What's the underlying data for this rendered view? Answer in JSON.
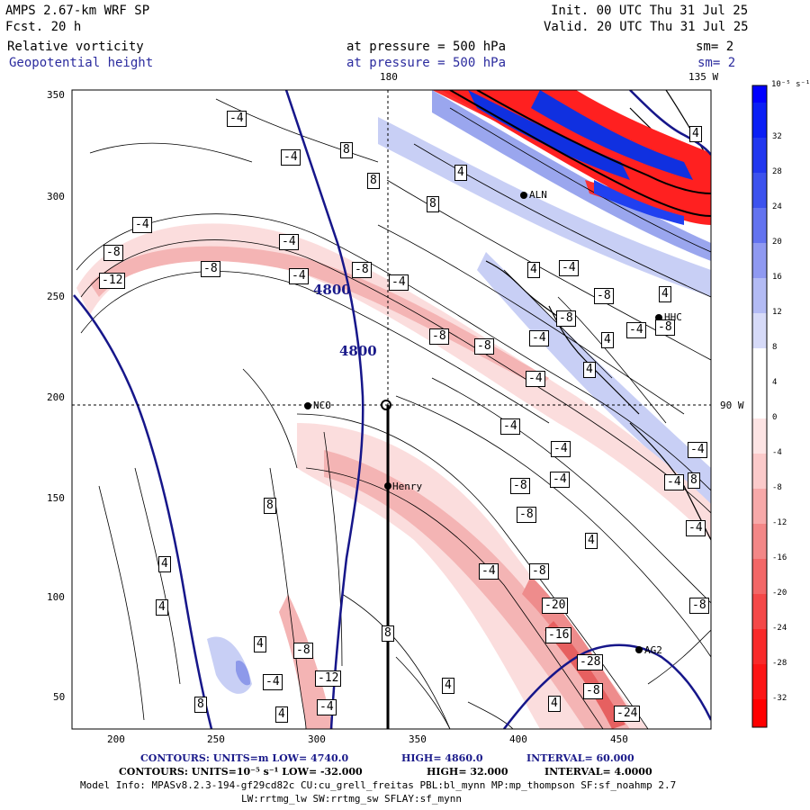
{
  "header": {
    "model": "AMPS 2.67-km WRF SP",
    "fcst": "Fcst.   20 h",
    "init": "Init. 00 UTC Thu 31 Jul 25",
    "valid": "Valid. 20 UTC Thu 31 Jul 25",
    "field1": "Relative vorticity",
    "field1_level": "at pressure =  500 hPa",
    "field1_sm": "sm= 2",
    "field2": "Geopotential height",
    "field2_level": "at pressure =  500 hPa",
    "field2_sm": "sm= 2"
  },
  "grid_labels": {
    "lon_top": "180",
    "lon_right_top": "135 W",
    "lat_right": "90 W"
  },
  "axes": {
    "x_ticks": [
      "200",
      "250",
      "300",
      "350",
      "400",
      "450"
    ],
    "y_ticks": [
      "350",
      "300",
      "250",
      "200",
      "150",
      "100",
      "50"
    ]
  },
  "colorbar": {
    "unit": "10⁻⁵ s⁻¹",
    "ticks": [
      "32",
      "28",
      "24",
      "20",
      "16",
      "12",
      "8",
      "4",
      "0",
      "-4",
      "-8",
      "-12",
      "-16",
      "-20",
      "-24",
      "-28",
      "-32"
    ]
  },
  "stations": [
    {
      "name": "NCO"
    },
    {
      "name": "Henry"
    },
    {
      "name": "AG2"
    },
    {
      "name": "HHC"
    },
    {
      "name": "ALN"
    }
  ],
  "contour_labels": {
    "height": [
      "4800",
      "4800"
    ],
    "vorticity": [
      "-4",
      "-4",
      "-4",
      "-8",
      "-12",
      "-8",
      "-4",
      "-8",
      "-4",
      "-8",
      "-8",
      "-4",
      "-4",
      "-8",
      "8",
      "4",
      "8",
      "8",
      "4",
      "4",
      "-8",
      "-4",
      "-8",
      "4",
      "-4",
      "4",
      "-4",
      "-4",
      "-8",
      "-4",
      "-4",
      "4",
      "-4",
      "-8",
      "-8",
      "-20",
      "-16",
      "-28",
      "-8",
      "-24",
      "-12",
      "-8",
      "-4",
      "4",
      "4",
      "4",
      "4",
      "8",
      "8",
      "4",
      "-4",
      "4",
      "8",
      "-4",
      "-8",
      "-4",
      "8",
      "4",
      "-4"
    ]
  },
  "footer": {
    "line1_a": "CONTOURS:  UNITS=m  LOW=  4740.0",
    "line1_b": "HIGH=  4860.0",
    "line1_c": "INTERVAL=   60.000",
    "line2_a": "CONTOURS:  UNITS=10⁻⁵ s⁻¹  LOW= -32.000",
    "line2_b": "HIGH=  32.000",
    "line2_c": "INTERVAL=   4.0000",
    "line3": "Model Info: MPASv8.2.3-194-gf29cd82c CU:cu_grell_freitas PBL:bl_mynn MP:mp_thompson SF:sf_noahmp 2.7",
    "line4": "LW:rrtmg_lw SW:rrtmg_sw SFLAY:sf_mynn"
  }
}
